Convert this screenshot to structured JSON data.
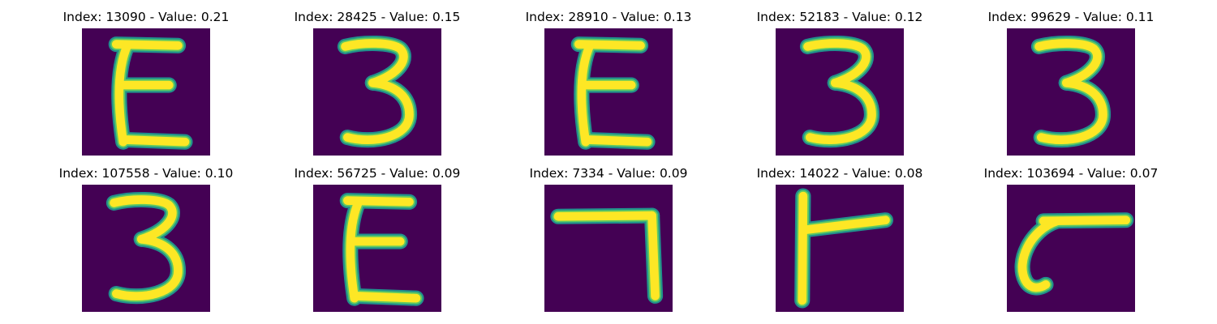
{
  "colors": {
    "background": "#440154",
    "stroke_edge": "#21918c",
    "stroke_mid": "#5ec962",
    "stroke_core": "#fde725"
  },
  "panels": [
    {
      "title": "Index: 13090 - Value: 0.21",
      "glyph": "E-shape"
    },
    {
      "title": "Index: 28425 - Value: 0.15",
      "glyph": "3-shape"
    },
    {
      "title": "Index: 28910 - Value: 0.13",
      "glyph": "E-shape"
    },
    {
      "title": "Index: 52183 - Value: 0.12",
      "glyph": "3-shape"
    },
    {
      "title": "Index: 99629 - Value: 0.11",
      "glyph": "3-shape"
    },
    {
      "title": "Index: 107558 - Value: 0.10",
      "glyph": "3-shape"
    },
    {
      "title": "Index: 56725 - Value: 0.09",
      "glyph": "E-shape"
    },
    {
      "title": "Index: 7334 - Value: 0.09",
      "glyph": "7-shape"
    },
    {
      "title": "Index: 14022 - Value: 0.08",
      "glyph": "F-shape"
    },
    {
      "title": "Index: 103694 - Value: 0.07",
      "glyph": "C-shape"
    }
  ]
}
